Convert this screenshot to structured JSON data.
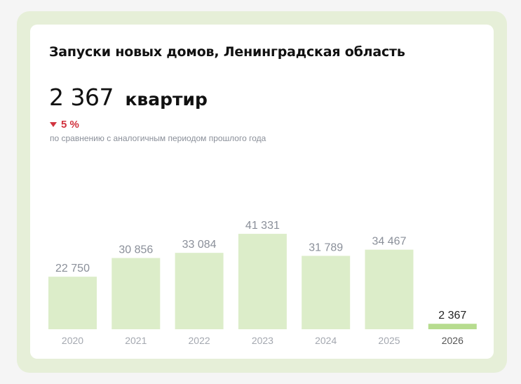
{
  "card": {
    "title": "Запуски новых домов, Ленинградская область",
    "kpi_value": "2 367",
    "kpi_unit": "квартир",
    "delta_value": "5 %",
    "delta_direction": "down",
    "delta_caption": "по сравнению с аналогичным периодом прошлого года"
  },
  "colors": {
    "bar": "#dcedc9",
    "bar_highlight": "#b7dc8f",
    "value_label": "#8a8f99",
    "value_label_highlight": "#222222",
    "tick_label": "#a4a8b0",
    "tick_label_highlight": "#555555",
    "delta_negative": "#d1333f"
  },
  "chart_data": {
    "type": "bar",
    "title": "Запуски новых домов, Ленинградская область",
    "xlabel": "",
    "ylabel": "",
    "categories": [
      "2020",
      "2021",
      "2022",
      "2023",
      "2024",
      "2025",
      "2026"
    ],
    "values": [
      22750,
      30856,
      33084,
      41331,
      31789,
      34467,
      2367
    ],
    "value_labels": [
      "22 750",
      "30 856",
      "33 084",
      "41 331",
      "31 789",
      "34 467",
      "2 367"
    ],
    "highlight_index": 6,
    "ylim": [
      0,
      45000
    ],
    "grid": false,
    "legend": "none"
  }
}
